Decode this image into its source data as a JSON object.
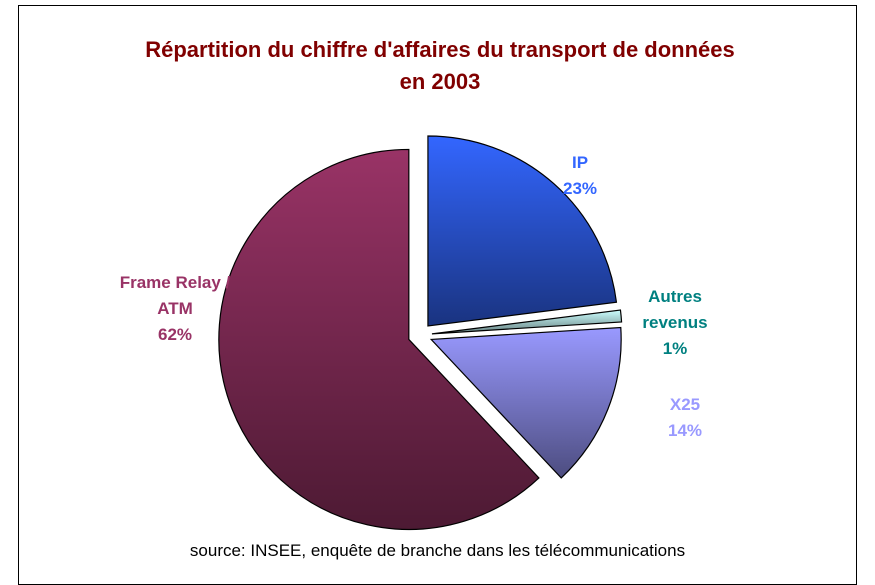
{
  "chart_data": {
    "type": "pie",
    "title": "Répartition du chiffre d'affaires du transport de données en 2003",
    "categories": [
      "IP",
      "Autres revenus",
      "X25",
      "Frame Relay / ATM"
    ],
    "values": [
      23,
      1,
      14,
      62
    ],
    "value_labels": [
      "23%",
      "1%",
      "14%",
      "62%"
    ],
    "colors": [
      "#3366ff",
      "#ccffff",
      "#9999ff",
      "#993366"
    ],
    "label_colors": [
      "#3366ff",
      "#008080",
      "#9999ff",
      "#993366"
    ],
    "source": "source: INSEE, enquête de branche dans les télécommunications"
  }
}
